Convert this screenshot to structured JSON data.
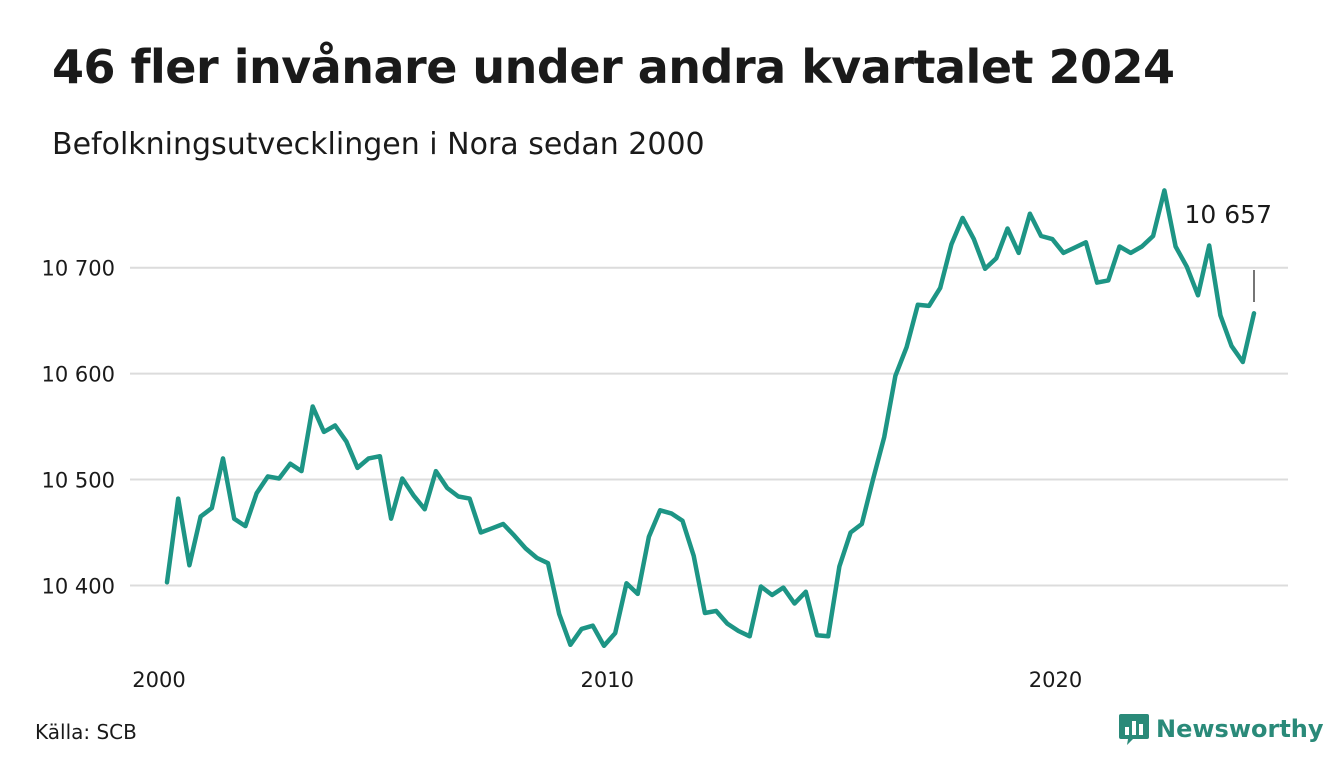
{
  "header": {
    "title": "46 fler invånare under andra kvartalet 2024",
    "subtitle": "Befolkningsutvecklingen i Nora sedan 2000"
  },
  "footer": {
    "source": "Källa: SCB",
    "brand": "Newsworthy"
  },
  "colors": {
    "line": "#1d9585",
    "grid": "#dcdcdc",
    "brand": "#2a8a79"
  },
  "chart_data": {
    "type": "line",
    "title": "46 fler invånare under andra kvartalet 2024",
    "subtitle": "Befolkningsutvecklingen i Nora sedan 2000",
    "x_start": 2000.0,
    "x_step": 0.25,
    "xlim": [
      2000.0,
      2024.25
    ],
    "ylim": [
      10340,
      10780
    ],
    "y_ticks": [
      10400,
      10500,
      10600,
      10700
    ],
    "y_tick_labels": [
      "10 400",
      "10 500",
      "10 600",
      "10 700"
    ],
    "x_ticks": [
      2000,
      2010,
      2020
    ],
    "x_tick_labels": [
      "2000",
      "2010",
      "2020"
    ],
    "grid": true,
    "last_value_label": "10 657",
    "values": [
      10403,
      10482,
      10419,
      10465,
      10473,
      10520,
      10463,
      10456,
      10487,
      10503,
      10501,
      10515,
      10508,
      10569,
      10545,
      10551,
      10536,
      10511,
      10520,
      10522,
      10463,
      10501,
      10485,
      10472,
      10508,
      10492,
      10484,
      10482,
      10450,
      10454,
      10458,
      10447,
      10435,
      10426,
      10421,
      10373,
      10344,
      10359,
      10362,
      10343,
      10355,
      10402,
      10392,
      10446,
      10471,
      10468,
      10461,
      10428,
      10374,
      10376,
      10364,
      10357,
      10352,
      10399,
      10391,
      10398,
      10383,
      10394,
      10353,
      10352,
      10418,
      10450,
      10458,
      10500,
      10540,
      10598,
      10625,
      10665,
      10664,
      10681,
      10722,
      10747,
      10727,
      10699,
      10709,
      10737,
      10714,
      10751,
      10730,
      10727,
      10714,
      10719,
      10724,
      10686,
      10688,
      10720,
      10714,
      10720,
      10730,
      10773,
      10720,
      10701,
      10674,
      10721,
      10655,
      10626,
      10611,
      10657
    ]
  }
}
